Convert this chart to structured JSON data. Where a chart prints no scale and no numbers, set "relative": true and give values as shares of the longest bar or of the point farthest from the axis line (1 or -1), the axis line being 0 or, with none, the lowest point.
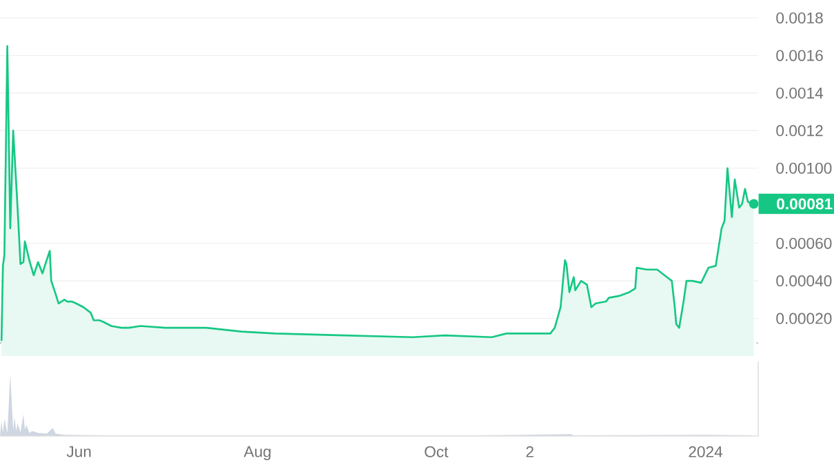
{
  "chart_data": [
    {
      "type": "area",
      "xlim": [
        "2023-05-05",
        "2024-01-19"
      ],
      "ylim": [
        0,
        0.0018
      ],
      "yticks": [
        {
          "value": 0.0002,
          "label": "0.00020"
        },
        {
          "value": 0.0004,
          "label": "0.00040"
        },
        {
          "value": 0.0006,
          "label": "0.00060"
        },
        {
          "value": 0.001,
          "label": "0.00100"
        },
        0.0012,
        0.0014,
        0.0016,
        0.0018
      ],
      "tick_labels": "y",
      "grid": "y",
      "ref_lines": [
        {
          "axis": "y",
          "value": 7e-05,
          "color": "#b8bfca",
          "line_style": "dotted"
        }
      ],
      "annotations": [
        {
          "text": "0.00081",
          "x": "2024-01-17T12:00",
          "y": 0.00081
        }
      ],
      "series": [
        {
          "color": "#16c784",
          "x": [
            "2023-05-05T12:00",
            "2023-05-06T00:00",
            "2023-05-06T12:00",
            "2023-05-07T12:00",
            "2023-05-08T12:00",
            "2023-05-09T12:00",
            "2023-05-11T00:00",
            "2023-05-12",
            "2023-05-13",
            "2023-05-13T12:00",
            "2023-05-15",
            "2023-05-16T12:00",
            "2023-05-18",
            "2023-05-19T12:00",
            "2023-05-20T12:00",
            "2023-05-22",
            "2023-05-22T12:00",
            "2023-05-24",
            "2023-05-25",
            "2023-05-27",
            "2023-05-28",
            "2023-05-29T12:00",
            "2023-05-31",
            "2023-06-02T12:00",
            "2023-06-05",
            "2023-06-06",
            "2023-06-08",
            "2023-06-09T12:00",
            "2023-06-12",
            "2023-06-15T12:00",
            "2023-06-18",
            "2023-06-22",
            "2023-06-30T12:00",
            "2023-07-14T12:00",
            "2023-07-26T12:00",
            "2023-08-07",
            "2023-08-30T12:00",
            "2023-09-23",
            "2023-10-04",
            "2023-10-20",
            "2023-10-25",
            "2023-11-09",
            "2023-11-10T12:00",
            "2023-11-12T12:00",
            "2023-11-13T12:00",
            "2023-11-14",
            "2023-11-14T12:00",
            "2023-11-15T12:00",
            "2023-11-17",
            "2023-11-17T12:00",
            "2023-11-19T12:00",
            "2023-11-21T12:00",
            "2023-11-23",
            "2023-11-24T12:00",
            "2023-11-28",
            "2023-11-29",
            "2023-12-02T12:00",
            "2023-12-06",
            "2023-12-08",
            "2023-12-08T12:00",
            "2023-12-12",
            "2023-12-15T12:00",
            "2023-12-18",
            "2023-12-20T12:00",
            "2023-12-21T12:00",
            "2023-12-22",
            "2023-12-23",
            "2023-12-24T12:00",
            "2023-12-25T12:00",
            "2023-12-27T12:00",
            "2023-12-30T12:00",
            "2024-01-02",
            "2024-01-04T12:00",
            "2024-01-06T12:00",
            "2024-01-07T12:00",
            "2024-01-08T12:00",
            "2024-01-10",
            "2024-01-11",
            "2024-01-12T12:00",
            "2024-01-13T12:00",
            "2024-01-14T12:00",
            "2024-01-15T12:00",
            "2024-01-17T12:00"
          ],
          "values": [
            8e-05,
            0.00048,
            0.00054,
            0.00165,
            0.00068,
            0.0012,
            0.00079,
            0.00049,
            0.0005,
            0.00061,
            0.00051,
            0.00043,
            0.0005,
            0.00044,
            0.00049,
            0.00056,
            0.0004,
            0.00033,
            0.00028,
            0.0003,
            0.00029,
            0.00029,
            0.00028,
            0.00026,
            0.00023,
            0.00019,
            0.00019,
            0.00018,
            0.00016,
            0.00015,
            0.00015,
            0.00016,
            0.00015,
            0.00015,
            0.00013,
            0.00012,
            0.00011,
            0.0001,
            0.00011,
            0.0001,
            0.00012,
            0.00012,
            0.00015,
            0.00026,
            0.00043,
            0.00051,
            0.00049,
            0.00034,
            0.00042,
            0.00035,
            0.0004,
            0.00038,
            0.00026,
            0.00028,
            0.00029,
            0.00031,
            0.00032,
            0.00034,
            0.00036,
            0.00047,
            0.00046,
            0.00046,
            0.00043,
            0.0004,
            0.00026,
            0.00017,
            0.00015,
            0.00029,
            0.0004,
            0.0004,
            0.00039,
            0.00047,
            0.00048,
            0.00068,
            0.00072,
            0.001,
            0.00074,
            0.00094,
            0.00079,
            0.00081,
            0.00089,
            0.00082,
            0.00081
          ]
        }
      ]
    },
    {
      "type": "area",
      "relative": true,
      "xlim": [
        "2023-05-05",
        "2024-01-19"
      ],
      "tick_labels": "x",
      "xticks": [
        {
          "value": "2023-06-01",
          "label": "Jun"
        },
        {
          "value": "2023-08-01",
          "label": "Aug"
        },
        {
          "value": "2023-10-01",
          "label": "Oct"
        },
        {
          "value": "2023-11-02",
          "label": "2"
        },
        {
          "value": "2024-01-01",
          "label": "2024"
        }
      ],
      "series": [
        {
          "color": "#c9d1de",
          "x": [
            "2023-05-05",
            "2023-05-05T12:00",
            "2023-05-06T00:00",
            "2023-05-06T12:00",
            "2023-05-07T12:00",
            "2023-05-08T12:00",
            "2023-05-09T12:00",
            "2023-05-10T00:00",
            "2023-05-10T12:00",
            "2023-05-11T00:00",
            "2023-05-12",
            "2023-05-13T00:00",
            "2023-05-13T12:00",
            "2023-05-14",
            "2023-05-15",
            "2023-05-16",
            "2023-05-18",
            "2023-05-21",
            "2023-05-23",
            "2023-05-24",
            "2023-05-27",
            "2023-06-10",
            "2023-08-01",
            "2023-10-15",
            "2023-11-16",
            "2023-11-17",
            "2024-01-03",
            "2024-01-17"
          ],
          "values": [
            0,
            0.25,
            0.05,
            0.28,
            0.05,
            1,
            0.1,
            0.3,
            0.08,
            0.2,
            0.06,
            0.35,
            0.1,
            0.18,
            0.05,
            0.08,
            0.05,
            0.04,
            0.13,
            0.04,
            0.02,
            0.01,
            0.01,
            0.01,
            0.03,
            0.01,
            0.02,
            0.01
          ]
        }
      ]
    }
  ]
}
